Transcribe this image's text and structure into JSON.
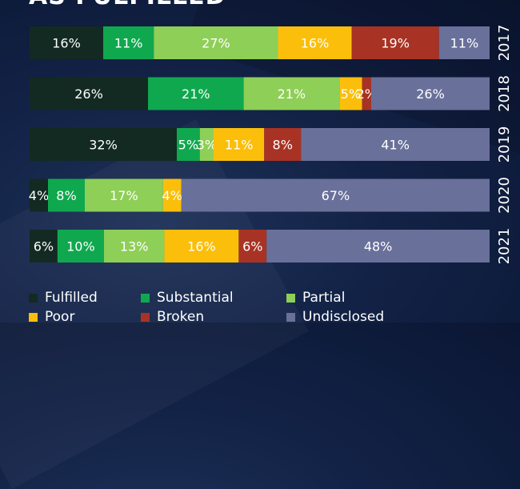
{
  "title": "AS FULFILLED",
  "chart_data": {
    "type": "bar",
    "orientation": "horizontal",
    "stacked": true,
    "categories": [
      "2017",
      "2018",
      "2019",
      "2020",
      "2021"
    ],
    "series": [
      {
        "name": "Fulfilled",
        "color": "#132a22",
        "values": [
          16,
          26,
          32,
          4,
          6
        ]
      },
      {
        "name": "Substantial",
        "color": "#10a84e",
        "values": [
          11,
          21,
          5,
          8,
          10
        ]
      },
      {
        "name": "Partial",
        "color": "#8ecf57",
        "values": [
          27,
          21,
          3,
          17,
          13
        ]
      },
      {
        "name": "Poor",
        "color": "#fbbf0b",
        "values": [
          16,
          5,
          11,
          4,
          16
        ]
      },
      {
        "name": "Broken",
        "color": "#a83324",
        "values": [
          19,
          2,
          8,
          0,
          6
        ]
      },
      {
        "name": "Undisclosed",
        "color": "#69709a",
        "values": [
          11,
          26,
          41,
          67,
          48
        ]
      }
    ],
    "value_suffix": "%",
    "legend_position": "bottom",
    "grid": false
  }
}
